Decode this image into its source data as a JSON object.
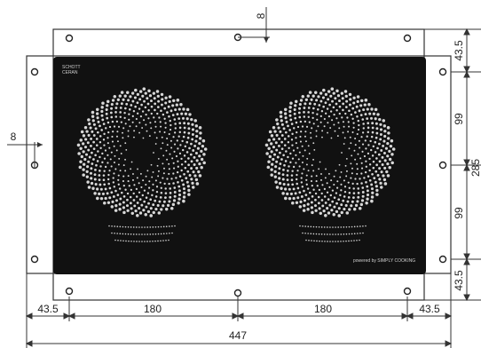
{
  "drawing": {
    "brand_line1": "SCHOTT",
    "brand_line2": "CERAN",
    "bottom_text": "powered by SIMPLY COOKING",
    "colors": {
      "glass": "#111111",
      "frame": "#ffffff",
      "line": "#333333",
      "dots": "#d8d8d8"
    }
  },
  "dimensions": {
    "top_gap": "8",
    "left_gap": "8",
    "right_top": "43.5",
    "right_mid_upper": "99",
    "right_mid_lower": "99",
    "right_bottom": "43.5",
    "right_total": "285",
    "bottom_left": "43.5",
    "bottom_mid_left": "180",
    "bottom_mid_right": "180",
    "bottom_right": "43.5",
    "bottom_total": "447"
  }
}
